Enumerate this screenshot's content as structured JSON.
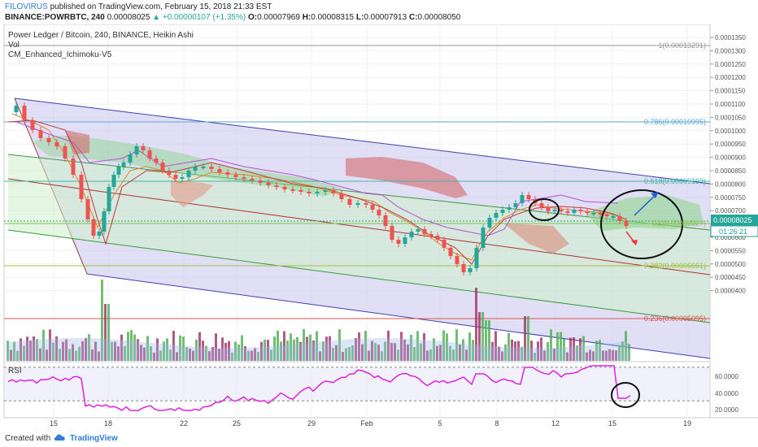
{
  "header": {
    "user": "FILOVIRUS",
    "published_text": "published on TradingView.com, February 15, 2018 21:33 EST",
    "symbol": "BINANCE:POWRBTC, 240",
    "last": "0.00008025",
    "change": "▲ +0.00000107 (+1.35%)",
    "o_label": "O:",
    "o_value": "0.00007969",
    "h_label": "H:",
    "h_value": "0.00008315",
    "l_label": "L:",
    "l_value": "0.00007913",
    "c_label": "C:",
    "c_value": "0.00008050"
  },
  "overlay": {
    "title": "Power Ledger / Bitcoin, 240, BINANCE, Heikin Ashi",
    "vol": "Vol",
    "indicator": "CM_Enhanced_Ichimoku-V5",
    "rsi": "RSI"
  },
  "fib_labels": [
    {
      "text": "1(0.00013291)",
      "color": "#999999"
    },
    {
      "text": "0.786(0.00010995)",
      "color": "#5aa7d6"
    },
    {
      "text": "0.618(0.00009193)",
      "color": "#3fb6a6"
    },
    {
      "text": "0.5(0.00007927)",
      "color": "#8bc34a"
    },
    {
      "text": "0.382(0.00006661)",
      "color": "#a0c040"
    },
    {
      "text": "0.236(0.00005095)",
      "color": "#d9534f"
    }
  ],
  "price_axis": {
    "ticks": [
      "0.0001350",
      "0.0001300",
      "0.0001250",
      "0.0001200",
      "0.0001150",
      "0.0001100",
      "0.0001050",
      "0.0001000",
      "0.0000950",
      "0.0000900",
      "0.0000850",
      "0.0000800",
      "0.0000750",
      "0.0000700",
      "0.0000650",
      "0.0000600",
      "0.0000550",
      "0.0000500",
      "0.0000450",
      "0.0000400"
    ],
    "current_price": "0.00008025",
    "countdown": "01:26:21"
  },
  "rsi_axis": {
    "ticks": [
      "60.0000",
      "40.0000",
      "20.0000"
    ]
  },
  "time_axis": {
    "labels": [
      "15",
      "18",
      "22",
      "25",
      "29",
      "Feb",
      "5",
      "8",
      "12",
      "15",
      "19"
    ]
  },
  "footer": {
    "created_with": "Created with",
    "brand": "TradingView"
  },
  "colors": {
    "bull": "#26a69a",
    "bear": "#ef5350",
    "channel_fill": "#c9c4ef",
    "channel_line": "#3f3fb0",
    "inner_channel_fill": "#cfeecb",
    "rsi_line": "#e020e0",
    "price_tag": "#26a69a"
  }
}
